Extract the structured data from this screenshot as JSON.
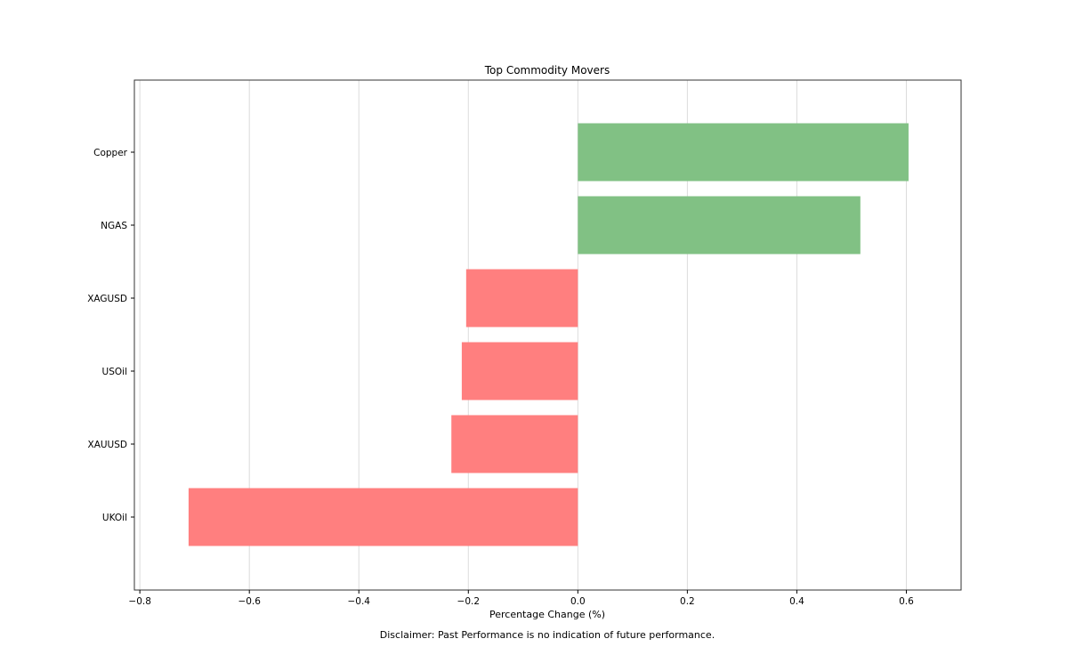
{
  "chart_data": {
    "type": "bar",
    "orientation": "horizontal",
    "title": "Top Commodity Movers",
    "xlabel": "Percentage Change (%)",
    "ylabel": "",
    "categories": [
      "Copper",
      "NGAS",
      "XAGUSD",
      "USOil",
      "XAUUSD",
      "UKOil"
    ],
    "values": [
      0.604,
      0.516,
      -0.204,
      -0.212,
      -0.231,
      -0.711
    ],
    "xlim": [
      -0.81,
      0.7
    ],
    "xticks": [
      -0.8,
      -0.6,
      -0.4,
      -0.2,
      0.0,
      0.2,
      0.4,
      0.6
    ],
    "xtick_labels": [
      "−0.8",
      "−0.6",
      "−0.4",
      "−0.2",
      "0.0",
      "0.2",
      "0.4",
      "0.6"
    ],
    "grid": "vertical",
    "colors": {
      "positive": "#81c184",
      "negative": "#ff7f7f",
      "grid": "#dcdcdc",
      "frame": "#333333"
    }
  },
  "footer": {
    "disclaimer": "Disclaimer: Past Performance is no indication of future performance."
  }
}
